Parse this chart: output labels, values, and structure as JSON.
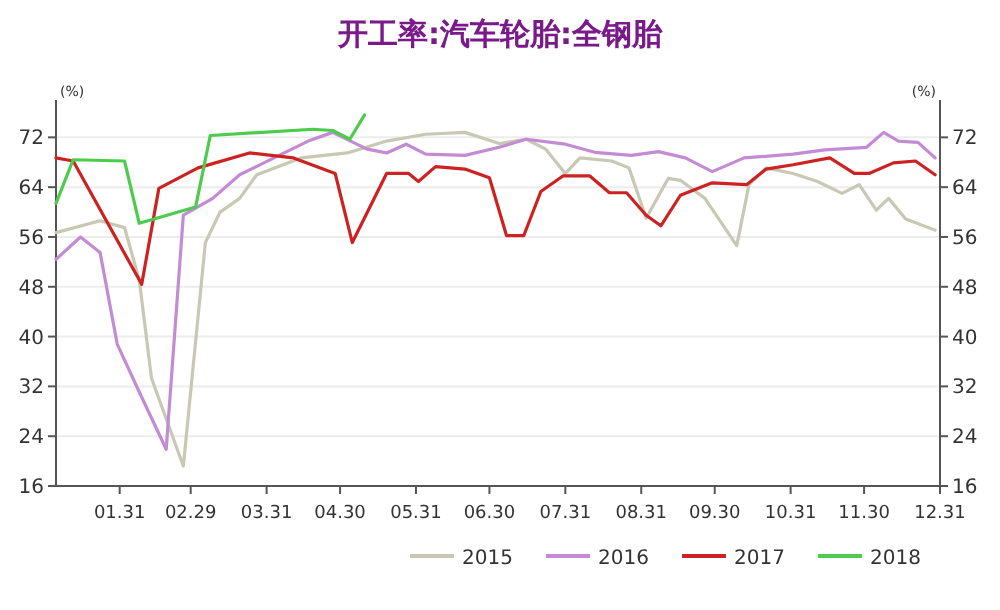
{
  "chart_data": {
    "type": "line",
    "title": "开工率:汽车轮胎:全钢胎",
    "ylabel": "(%)",
    "y2label": "(%)",
    "xlim": [
      "--01-05",
      "--12-31"
    ],
    "xticks": [
      {
        "value": "--01-31",
        "label": "01.31"
      },
      {
        "value": "--02-29",
        "label": "02.29"
      },
      {
        "value": "--03-31",
        "label": "03.31"
      },
      {
        "value": "--04-30",
        "label": "04.30"
      },
      {
        "value": "--05-31",
        "label": "05.31"
      },
      {
        "value": "--06-30",
        "label": "06.30"
      },
      {
        "value": "--07-31",
        "label": "07.31"
      },
      {
        "value": "--08-31",
        "label": "08.31"
      },
      {
        "value": "--09-30",
        "label": "09.30"
      },
      {
        "value": "--10-31",
        "label": "10.31"
      },
      {
        "value": "--11-30",
        "label": "11.30"
      },
      {
        "value": "--12-31",
        "label": "12.31"
      }
    ],
    "ylim": [
      16,
      78
    ],
    "yticks": [
      16,
      24,
      32,
      40,
      48,
      56,
      64,
      72
    ],
    "y2lim": [
      16,
      78
    ],
    "y2ticks": [
      16,
      24,
      32,
      40,
      48,
      56,
      64,
      72
    ],
    "grid": "y",
    "legend": "bottom",
    "line_style": "solid",
    "marker": "none",
    "series": [
      {
        "name": "2015",
        "color": "#c8c8b4",
        "x": [
          "--01-05",
          "--01-23",
          "--02-02",
          "--02-08",
          "--02-13",
          "--02-26",
          "--03-06",
          "--03-12",
          "--03-20",
          "--03-27",
          "--04-14",
          "--05-03",
          "--05-19",
          "--06-04",
          "--06-20",
          "--07-04",
          "--07-15",
          "--07-23",
          "--07-31",
          "--08-06",
          "--08-19",
          "--08-26",
          "--09-02",
          "--09-11",
          "--09-16",
          "--09-26",
          "--10-09",
          "--10-14",
          "--10-21",
          "--11-01",
          "--11-11",
          "--11-21",
          "--11-28",
          "--12-05",
          "--12-10",
          "--12-17",
          "--12-29"
        ],
        "values": [
          56.7,
          58.6,
          57.5,
          49.1,
          33.3,
          19.2,
          55.1,
          60,
          62.2,
          66,
          68.7,
          69.5,
          71.4,
          72.5,
          72.8,
          71,
          71.7,
          70.1,
          66.2,
          68.7,
          68.2,
          67.1,
          59,
          65.4,
          65.1,
          62.2,
          54.6,
          64.4,
          67.1,
          66.2,
          64.9,
          63,
          64.4,
          60.3,
          62.2,
          58.9,
          57.1
        ]
      },
      {
        "name": "2016",
        "color": "#c38bd4",
        "x": [
          "--01-05",
          "--01-15",
          "--01-23",
          "--01-30",
          "--02-08",
          "--02-19",
          "--02-26",
          "--03-09",
          "--03-20",
          "--04-03",
          "--04-17",
          "--04-27",
          "--05-11",
          "--05-19",
          "--05-27",
          "--06-04",
          "--06-20",
          "--07-04",
          "--07-15",
          "--07-31",
          "--08-12",
          "--08-27",
          "--09-07",
          "--09-18",
          "--09-29",
          "--10-12",
          "--11-01",
          "--11-14",
          "--12-01",
          "--12-08",
          "--12-14",
          "--12-22",
          "--12-29"
        ],
        "values": [
          52.4,
          56,
          53.5,
          38.8,
          31.1,
          21.9,
          59.5,
          62.2,
          66,
          68.7,
          71.4,
          72.8,
          70.1,
          69.5,
          70.9,
          69.3,
          69.1,
          70.4,
          71.7,
          70.9,
          69.6,
          69.1,
          69.7,
          68.7,
          66.5,
          68.7,
          69.3,
          70,
          70.4,
          72.8,
          71.4,
          71.2,
          68.7
        ]
      },
      {
        "name": "2017",
        "color": "#cc2222",
        "x": [
          "--01-05",
          "--01-12",
          "--02-09",
          "--02-16",
          "--03-03",
          "--03-24",
          "--04-11",
          "--04-28",
          "--05-05",
          "--05-19",
          "--05-28",
          "--06-01",
          "--06-08",
          "--06-20",
          "--06-30",
          "--07-07",
          "--07-14",
          "--07-21",
          "--07-30",
          "--08-10",
          "--08-18",
          "--08-25",
          "--09-02",
          "--09-08",
          "--09-16",
          "--09-29",
          "--10-13",
          "--10-21",
          "--11-01",
          "--11-16",
          "--11-26",
          "--12-02",
          "--12-12",
          "--12-21",
          "--12-29"
        ],
        "values": [
          68.7,
          68.2,
          48.4,
          63.8,
          67.1,
          69.5,
          68.7,
          66.2,
          55.1,
          66.2,
          66.2,
          64.9,
          67.3,
          66.9,
          65.5,
          56.2,
          56.2,
          63.3,
          65.8,
          65.8,
          63.1,
          63.1,
          59.5,
          57.8,
          62.7,
          64.7,
          64.4,
          66.9,
          67.6,
          68.7,
          66.2,
          66.2,
          67.9,
          68.2,
          66
        ]
      },
      {
        "name": "2018",
        "color": "#4ccc4c",
        "x": [
          "--01-05",
          "--01-12",
          "--02-02",
          "--02-08",
          "--03-02",
          "--03-08",
          "--04-19",
          "--04-27",
          "--05-04",
          "--05-10"
        ],
        "values": [
          61.4,
          68.4,
          68.2,
          58.2,
          60.8,
          72.3,
          73.3,
          73.1,
          71.7,
          75.6
        ]
      }
    ]
  }
}
